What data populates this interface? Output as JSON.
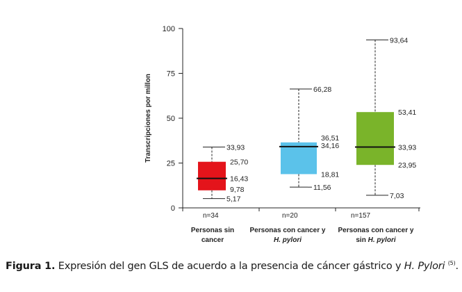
{
  "chart_data": {
    "type": "boxplot",
    "ylabel": "Transcripciones por millon",
    "ylim": [
      0,
      100
    ],
    "yticks": [
      "0",
      "25",
      "50",
      "75",
      "100"
    ],
    "grid": false,
    "groups": [
      {
        "label_line1": "Personas sin",
        "label_line2": "cancer",
        "label_line2_italic": "",
        "n_label": "n=34",
        "color": "#e4141b",
        "min": 5.17,
        "q1": 9.78,
        "median": 16.43,
        "q3": 25.7,
        "max": 33.93,
        "labels": {
          "max": "33,93",
          "q3": "25,70",
          "median": "16,43",
          "q1": "9,78",
          "min": "5,17"
        }
      },
      {
        "label_line1": "Personas con cancer y",
        "label_line2": "",
        "label_line2_italic": "H. pylori",
        "n_label": "n=20",
        "color": "#5bc2ea",
        "min": 11.56,
        "q1": 18.81,
        "median": 34.16,
        "q3": 36.51,
        "max": 66.28,
        "labels": {
          "max": "66,28",
          "q3": "36,51",
          "median": "34,16",
          "q1": "18,81",
          "min": "11,56"
        }
      },
      {
        "label_line1": "Personas con cancer y",
        "label_line2": "sin ",
        "label_line2_italic": "H. pylori",
        "n_label": "n=157",
        "color": "#7ab42a",
        "min": 7.03,
        "q1": 23.95,
        "median": 33.93,
        "q3": 53.41,
        "max": 93.64,
        "labels": {
          "max": "93,64",
          "q3": "53,41",
          "median": "33,93",
          "q1": "23,95",
          "min": "7,03"
        }
      }
    ]
  },
  "caption": {
    "figure_label": "Figura 1.",
    "text": " Expresión del gen GLS de acuerdo a la presencia de cáncer gástrico y ",
    "italic_text": "H. Pylori",
    "reference": "(5)",
    "end": "."
  }
}
